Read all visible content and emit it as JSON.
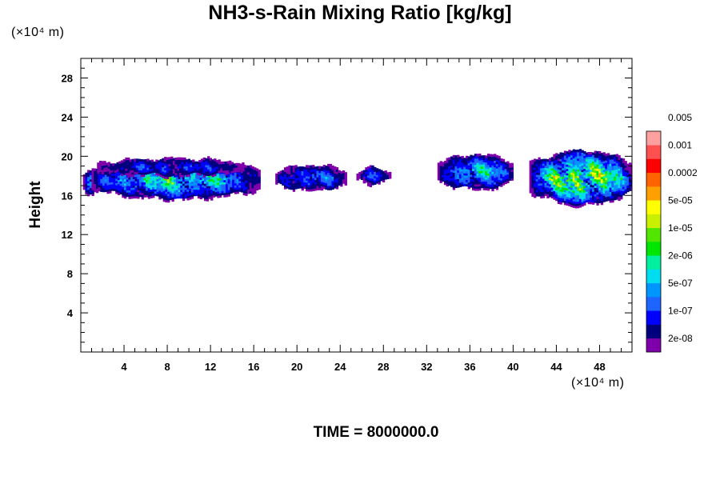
{
  "chart_data": {
    "type": "heatmap",
    "title": "NH3-s-Rain Mixing Ratio [kg/kg]",
    "xlabel": "",
    "ylabel": "Height",
    "x_unit": "(×10⁴ m)",
    "y_unit": "(×10⁴ m)",
    "xlim": [
      0,
      51
    ],
    "ylim": [
      0,
      30
    ],
    "x_ticks": [
      4,
      8,
      12,
      16,
      20,
      24,
      28,
      32,
      36,
      40,
      44,
      48
    ],
    "y_ticks": [
      4,
      8,
      12,
      16,
      20,
      24,
      28
    ],
    "footer": "TIME = 8000000.0",
    "colorbar": {
      "colors": [
        "#7f00aa",
        "#00007f",
        "#0000ff",
        "#1e64ff",
        "#0096ff",
        "#00dcf0",
        "#00f0a0",
        "#00e600",
        "#50e600",
        "#c8f000",
        "#ffff00",
        "#ffa000",
        "#ff6400",
        "#ff0000",
        "#ff5050",
        "#ffa0a0"
      ],
      "labels": [
        "2e-08",
        "1e-07",
        "5e-07",
        "2e-06",
        "1e-05",
        "5e-05",
        "0.0002",
        "0.001",
        "0.005"
      ]
    },
    "regions": [
      {
        "x0": 0.2,
        "x1": 1.5,
        "yc": 17.2,
        "h": 1.2,
        "peak": 6
      },
      {
        "x0": 1.0,
        "x1": 16.5,
        "yc": 17.5,
        "h": 2.0,
        "peak": 7
      },
      {
        "x0": 1.5,
        "x1": 15.0,
        "yc": 18.8,
        "h": 0.9,
        "peak": 3
      },
      {
        "x0": 18.0,
        "x1": 24.5,
        "yc": 17.7,
        "h": 1.3,
        "peak": 4
      },
      {
        "x0": 25.5,
        "x1": 28.5,
        "yc": 17.9,
        "h": 0.8,
        "peak": 3
      },
      {
        "x0": 33.0,
        "x1": 40.0,
        "yc": 18.3,
        "h": 1.8,
        "peak": 6
      },
      {
        "x0": 41.5,
        "x1": 51.0,
        "yc": 17.7,
        "h": 2.8,
        "peak": 10
      }
    ]
  }
}
